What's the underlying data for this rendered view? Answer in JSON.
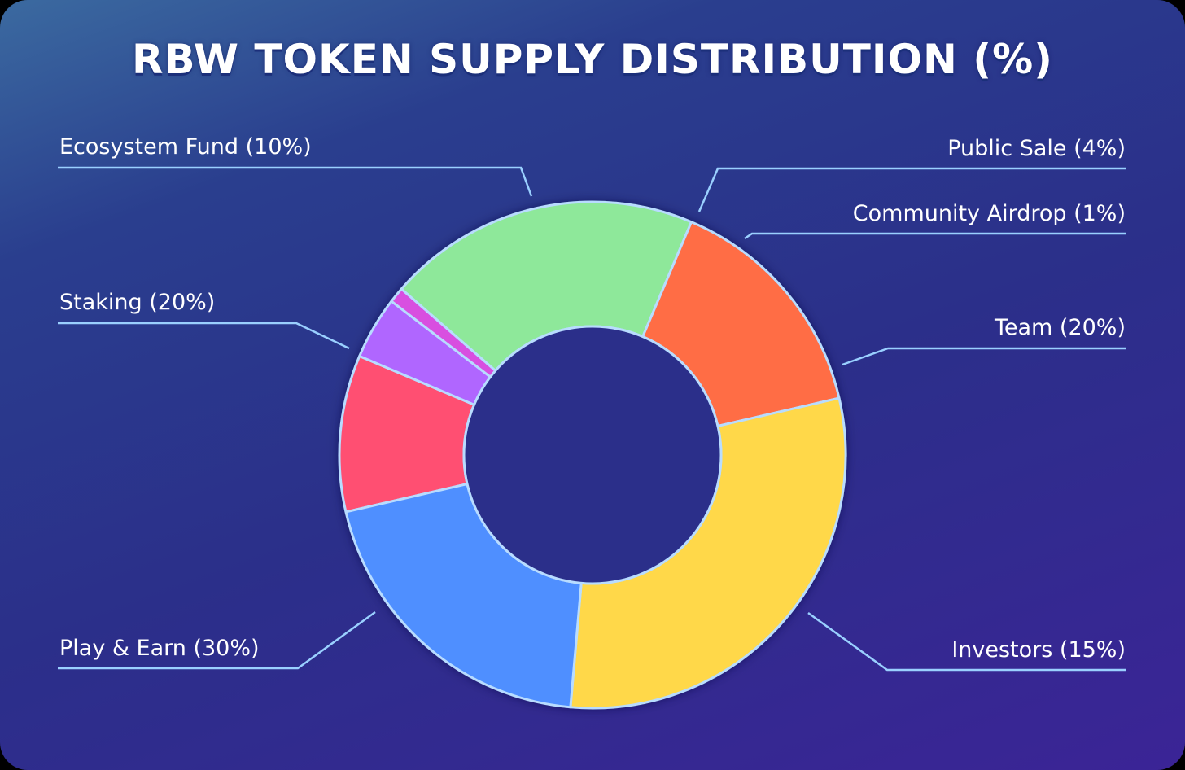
{
  "title": "RBW TOKEN SUPPLY DISTRIBUTION (%)",
  "chart_data": {
    "type": "pie",
    "variant": "donut",
    "title": "RBW TOKEN SUPPLY DISTRIBUTION (%)",
    "slices": [
      {
        "name": "Ecosystem Fund",
        "value": 10,
        "label": "Ecosystem Fund (10%)",
        "color": "#ff4f72"
      },
      {
        "name": "Public Sale",
        "value": 4,
        "label": "Public Sale (4%)",
        "color": "#b066ff"
      },
      {
        "name": "Community Airdrop",
        "value": 1,
        "label": "Community Airdrop (1%)",
        "color": "#d84fe0"
      },
      {
        "name": "Team",
        "value": 20,
        "label": "Team (20%)",
        "color": "#8ee89a"
      },
      {
        "name": "Investors",
        "value": 15,
        "label": "Investors (15%)",
        "color": "#ff6d45"
      },
      {
        "name": "Play & Earn",
        "value": 30,
        "label": "Play & Earn (30%)",
        "color": "#ffd84a"
      },
      {
        "name": "Staking",
        "value": 20,
        "label": "Staking (20%)",
        "color": "#4f8fff"
      }
    ],
    "label_positions": [
      "top-left",
      "top-right",
      "top-right",
      "right",
      "bottom-right",
      "bottom-left",
      "left"
    ],
    "colors": {
      "stroke": "#b8dcff",
      "leader_line": "#9ad0ff",
      "background_top": "#3b6aa0",
      "background_bottom": "#3b2496"
    }
  }
}
